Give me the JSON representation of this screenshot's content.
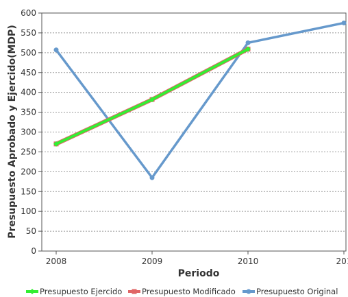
{
  "chart_data": {
    "type": "line",
    "xlabel": "Periodo",
    "ylabel": "Presupuesto Aprobado y Ejercido(MDP)",
    "x": [
      "2008",
      "2009",
      "2010",
      "201"
    ],
    "ylim": [
      0,
      600
    ],
    "yticks": [
      0,
      50,
      100,
      150,
      200,
      250,
      300,
      350,
      400,
      450,
      500,
      550,
      600
    ],
    "grid": true,
    "legend_position": "bottom",
    "series": [
      {
        "name": "Presupuesto Ejercido",
        "color": "#33ee33",
        "marker": "diamond",
        "values": [
          270,
          382,
          509,
          null
        ]
      },
      {
        "name": "Presupuesto Modificado",
        "color": "#e06666",
        "marker": "square",
        "values": [
          270,
          382,
          509,
          null
        ]
      },
      {
        "name": "Presupuesto Original",
        "color": "#6699cc",
        "marker": "circle",
        "values": [
          507,
          185,
          525,
          575
        ]
      }
    ]
  }
}
